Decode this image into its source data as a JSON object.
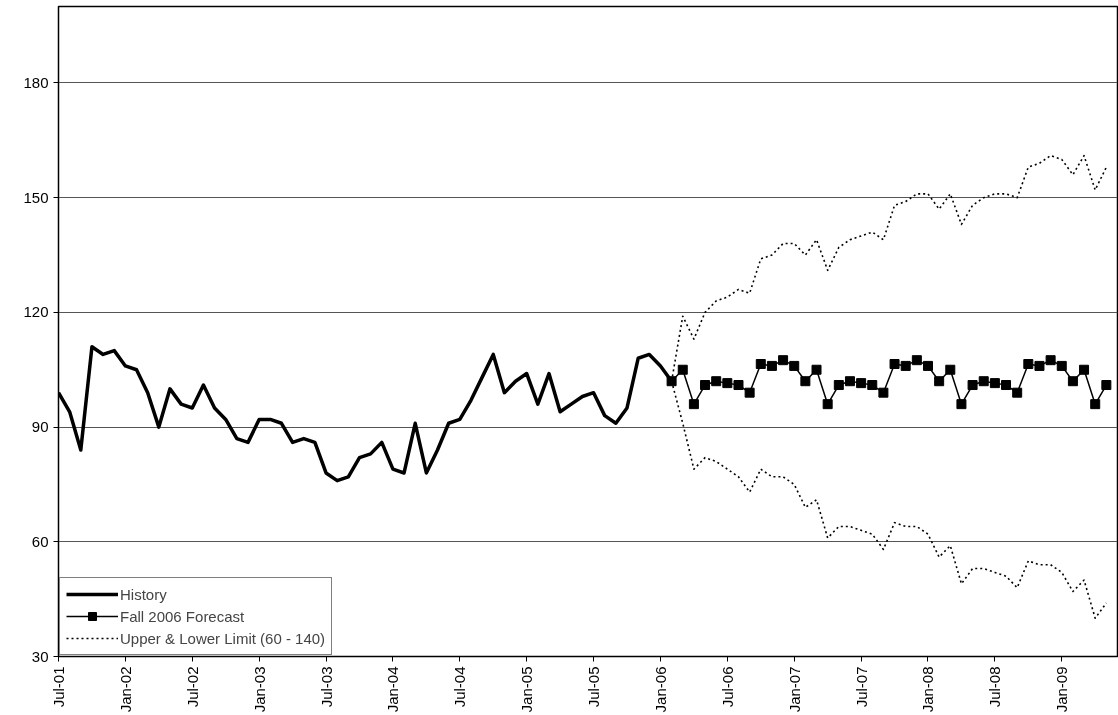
{
  "chart_data": {
    "type": "line",
    "xlim": [
      "2001-07",
      "2009-06"
    ],
    "ylim": [
      30,
      200
    ],
    "yticks": [
      30,
      60,
      90,
      120,
      150,
      180
    ],
    "xticks": [
      {
        "value": "2001-07",
        "label": "Jul-01"
      },
      {
        "value": "2002-01",
        "label": "Jan-02"
      },
      {
        "value": "2002-07",
        "label": "Jul-02"
      },
      {
        "value": "2003-01",
        "label": "Jan-03"
      },
      {
        "value": "2003-07",
        "label": "Jul-03"
      },
      {
        "value": "2004-01",
        "label": "Jan-04"
      },
      {
        "value": "2004-07",
        "label": "Jul-04"
      },
      {
        "value": "2005-01",
        "label": "Jan-05"
      },
      {
        "value": "2005-07",
        "label": "Jul-05"
      },
      {
        "value": "2006-01",
        "label": "Jan-06"
      },
      {
        "value": "2006-07",
        "label": "Jul-06"
      },
      {
        "value": "2007-01",
        "label": "Jan-07"
      },
      {
        "value": "2007-07",
        "label": "Jul-07"
      },
      {
        "value": "2008-01",
        "label": "Jan-08"
      },
      {
        "value": "2008-07",
        "label": "Jul-08"
      },
      {
        "value": "2009-01",
        "label": "Jan-09"
      }
    ],
    "grid": "y",
    "legend": "bottom left",
    "series": [
      {
        "name": "History",
        "color": "#000000",
        "marker": "none",
        "line_style": "solid",
        "x": [
          "2001-07",
          "2001-08",
          "2001-09",
          "2001-10",
          "2001-11",
          "2001-12",
          "2002-01",
          "2002-02",
          "2002-03",
          "2002-04",
          "2002-05",
          "2002-06",
          "2002-07",
          "2002-08",
          "2002-09",
          "2002-10",
          "2002-11",
          "2002-12",
          "2003-01",
          "2003-02",
          "2003-03",
          "2003-04",
          "2003-05",
          "2003-06",
          "2003-07",
          "2003-08",
          "2003-09",
          "2003-10",
          "2003-11",
          "2003-12",
          "2004-01",
          "2004-02",
          "2004-03",
          "2004-04",
          "2004-05",
          "2004-06",
          "2004-07",
          "2004-08",
          "2004-09",
          "2004-10",
          "2004-11",
          "2004-12",
          "2005-01",
          "2005-02",
          "2005-03",
          "2005-04",
          "2005-05",
          "2005-06",
          "2005-07",
          "2005-08",
          "2005-09",
          "2005-10",
          "2005-11",
          "2005-12",
          "2006-01",
          "2006-02"
        ],
        "values": [
          99,
          94,
          84,
          111,
          109,
          110,
          106,
          105,
          99,
          90,
          100,
          96,
          95,
          101,
          95,
          92,
          87,
          86,
          92,
          92,
          91,
          86,
          87,
          86,
          78,
          76,
          77,
          82,
          83,
          86,
          79,
          78,
          91,
          78,
          84,
          91,
          92,
          97,
          103,
          109,
          99,
          102,
          104,
          96,
          104,
          94,
          96,
          98,
          99,
          93,
          91,
          95,
          108,
          109,
          106,
          102
        ]
      },
      {
        "name": "Fall 2006 Forecast",
        "color": "#000000",
        "marker": "square",
        "line_style": "solid",
        "x": [
          "2006-02",
          "2006-03",
          "2006-04",
          "2006-05",
          "2006-06",
          "2006-07",
          "2006-08",
          "2006-09",
          "2006-10",
          "2006-11",
          "2006-12",
          "2007-01",
          "2007-02",
          "2007-03",
          "2007-04",
          "2007-05",
          "2007-06",
          "2007-07",
          "2007-08",
          "2007-09",
          "2007-10",
          "2007-11",
          "2007-12",
          "2008-01",
          "2008-02",
          "2008-03",
          "2008-04",
          "2008-05",
          "2008-06",
          "2008-07",
          "2008-08",
          "2008-09",
          "2008-10",
          "2008-11",
          "2008-12",
          "2009-01",
          "2009-02",
          "2009-03",
          "2009-04",
          "2009-05"
        ],
        "values": [
          102,
          105,
          96,
          101,
          102,
          101.5,
          101,
          99,
          106.5,
          106,
          107.5,
          106,
          102,
          105,
          96,
          101,
          102,
          101.5,
          101,
          99,
          106.5,
          106,
          107.5,
          106,
          102,
          105,
          96,
          101,
          102,
          101.5,
          101,
          99,
          106.5,
          106,
          107.5,
          106,
          102,
          105,
          96,
          101
        ]
      },
      {
        "name": "Upper & Lower Limit (60 - 140)",
        "color": "#000000",
        "marker": "none",
        "line_style": "dotted",
        "x": [
          "2006-02",
          "2006-03",
          "2006-04",
          "2006-05",
          "2006-06",
          "2006-07",
          "2006-08",
          "2006-09",
          "2006-10",
          "2006-11",
          "2006-12",
          "2007-01",
          "2007-02",
          "2007-03",
          "2007-04",
          "2007-05",
          "2007-06",
          "2007-07",
          "2007-08",
          "2007-09",
          "2007-10",
          "2007-11",
          "2007-12",
          "2008-01",
          "2008-02",
          "2008-03",
          "2008-04",
          "2008-05",
          "2008-06",
          "2008-07",
          "2008-08",
          "2008-09",
          "2008-10",
          "2008-11",
          "2008-12",
          "2009-01",
          "2009-02",
          "2009-03",
          "2009-04",
          "2009-05"
        ],
        "values": [
          102,
          119,
          113,
          120,
          123,
          124,
          126,
          125,
          134,
          135,
          138,
          138,
          135,
          139,
          131,
          137,
          139,
          140,
          141,
          139,
          148,
          149,
          151,
          151,
          147,
          151,
          143,
          148,
          150,
          151,
          151,
          150,
          158,
          159,
          161,
          160,
          156,
          161,
          152,
          158
        ]
      },
      {
        "color": "#000000",
        "marker": "none",
        "line_style": "dotted",
        "x": [
          "2006-02",
          "2006-03",
          "2006-04",
          "2006-05",
          "2006-06",
          "2006-07",
          "2006-08",
          "2006-09",
          "2006-10",
          "2006-11",
          "2006-12",
          "2007-01",
          "2007-02",
          "2007-03",
          "2007-04",
          "2007-05",
          "2007-06",
          "2007-07",
          "2007-08",
          "2007-09",
          "2007-10",
          "2007-11",
          "2007-12",
          "2008-01",
          "2008-02",
          "2008-03",
          "2008-04",
          "2008-05",
          "2008-06",
          "2008-07",
          "2008-08",
          "2008-09",
          "2008-10",
          "2008-11",
          "2008-12",
          "2009-01",
          "2009-02",
          "2009-03",
          "2009-04",
          "2009-05"
        ],
        "values": [
          102,
          91,
          79,
          82,
          81,
          79,
          77,
          73,
          79,
          77,
          77,
          75,
          69,
          71,
          61,
          64,
          64,
          63,
          62,
          58,
          65,
          64,
          64,
          62,
          56,
          59,
          49,
          53,
          53,
          52,
          51,
          48,
          55,
          54,
          54,
          52,
          47,
          50,
          40,
          44
        ]
      }
    ]
  }
}
